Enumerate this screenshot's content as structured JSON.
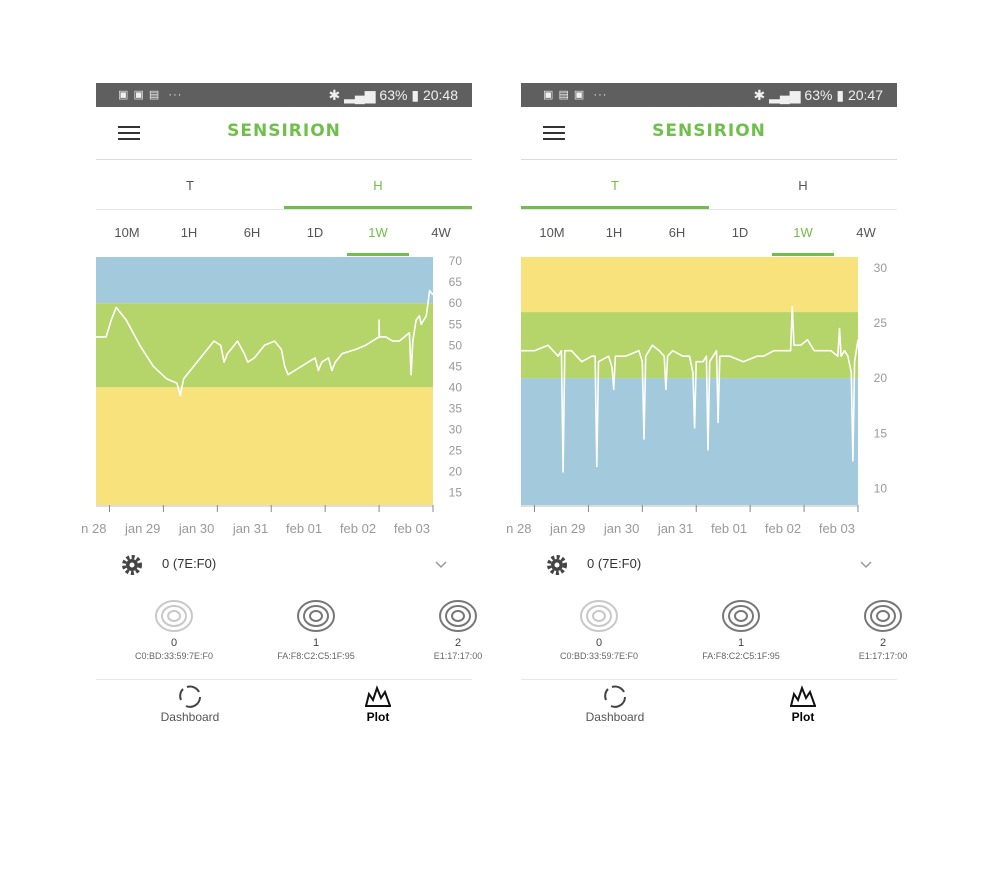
{
  "brand": "SENSIRION",
  "tabs": [
    "T",
    "H"
  ],
  "ranges": [
    "10M",
    "1H",
    "6H",
    "1D",
    "1W",
    "4W"
  ],
  "colors": {
    "blue": "#a3c9dd",
    "green": "#b5d56a",
    "yellow": "#f7e27c",
    "accent": "#6fbf4a",
    "line": "#ffffff"
  },
  "sensor_selector": {
    "label": "0 (7E:F0)"
  },
  "sensors": [
    {
      "num": "0",
      "addr": "C0:BD:33:59:7E:F0"
    },
    {
      "num": "1",
      "addr": "FA:F8:C2:C5:1F:95"
    },
    {
      "num": "2",
      "addr": "E1:17:17:00"
    }
  ],
  "nav": {
    "dashboard": "Dashboard",
    "plot": "Plot"
  },
  "screens": [
    {
      "status": {
        "battery": "63%",
        "time": "20:48"
      },
      "active_tab": 1,
      "active_range": 4,
      "chart_data": {
        "type": "line",
        "ylim": [
          12,
          71
        ],
        "yticks": [
          70,
          65,
          60,
          55,
          50,
          45,
          40,
          35,
          30,
          25,
          20,
          15
        ],
        "x_tick_labels": [
          "n 28",
          "jan 29",
          "jan 30",
          "jan 31",
          "feb 01",
          "feb 02",
          "feb 03"
        ],
        "x_tick_pos": [
          0.04,
          0.2,
          0.36,
          0.52,
          0.68,
          0.84,
          1.0
        ],
        "bands": [
          {
            "from": 60,
            "to": 72,
            "color": "blue"
          },
          {
            "from": 40,
            "to": 60,
            "color": "green"
          },
          {
            "from": 12,
            "to": 40,
            "color": "yellow"
          }
        ],
        "series": [
          {
            "x": [
              0,
              0.03,
              0.045,
              0.06,
              0.09,
              0.13,
              0.17,
              0.21,
              0.24,
              0.25,
              0.255,
              0.26,
              0.29,
              0.33,
              0.35,
              0.37,
              0.38,
              0.39,
              0.42,
              0.44,
              0.45,
              0.47,
              0.5,
              0.53,
              0.55,
              0.56,
              0.57,
              0.59,
              0.63,
              0.65,
              0.66,
              0.67,
              0.69,
              0.7,
              0.71,
              0.73,
              0.77,
              0.8,
              0.82,
              0.84,
              0.84,
              0.841,
              0.86,
              0.88,
              0.9,
              0.93,
              0.935,
              0.94,
              0.95,
              0.96,
              0.965,
              0.98,
              0.99,
              1.0
            ],
            "y": [
              52,
              52,
              56,
              59,
              56,
              50,
              45,
              42,
              41,
              38,
              40,
              42,
              45,
              49,
              51,
              50,
              46,
              48,
              51,
              48,
              46,
              47,
              50,
              51,
              49,
              45,
              43,
              44,
              46,
              47,
              44,
              46,
              47,
              44,
              46,
              48,
              49,
              50,
              51,
              52,
              56,
              52,
              52,
              51,
              51,
              53,
              43,
              51,
              56,
              57,
              55,
              57,
              63,
              62
            ]
          }
        ]
      }
    },
    {
      "status": {
        "battery": "63%",
        "time": "20:47"
      },
      "active_tab": 0,
      "active_range": 4,
      "chart_data": {
        "type": "line",
        "ylim": [
          8.5,
          31
        ],
        "yticks": [
          30,
          25,
          20,
          15,
          10
        ],
        "x_tick_labels": [
          "n 28",
          "jan 29",
          "jan 30",
          "jan 31",
          "feb 01",
          "feb 02",
          "feb 03"
        ],
        "x_tick_pos": [
          0.04,
          0.2,
          0.36,
          0.52,
          0.68,
          0.84,
          1.0
        ],
        "bands": [
          {
            "from": 26,
            "to": 32,
            "color": "yellow"
          },
          {
            "from": 20,
            "to": 26,
            "color": "green"
          },
          {
            "from": 8,
            "to": 20,
            "color": "blue"
          }
        ],
        "series": [
          {
            "x": [
              0,
              0.04,
              0.08,
              0.11,
              0.12,
              0.125,
              0.13,
              0.15,
              0.18,
              0.21,
              0.22,
              0.225,
              0.23,
              0.26,
              0.27,
              0.275,
              0.28,
              0.31,
              0.35,
              0.36,
              0.365,
              0.37,
              0.39,
              0.41,
              0.425,
              0.43,
              0.435,
              0.45,
              0.48,
              0.5,
              0.51,
              0.515,
              0.52,
              0.54,
              0.55,
              0.555,
              0.56,
              0.58,
              0.585,
              0.59,
              0.62,
              0.66,
              0.7,
              0.72,
              0.75,
              0.78,
              0.8,
              0.805,
              0.81,
              0.83,
              0.85,
              0.87,
              0.9,
              0.92,
              0.94,
              0.945,
              0.95,
              0.96,
              0.97,
              0.98,
              0.985,
              0.99,
              1.0
            ],
            "y": [
              22.5,
              22.5,
              23,
              22,
              22.5,
              11.5,
              22.5,
              22.5,
              21.5,
              22,
              22,
              12,
              21.5,
              22,
              21,
              19,
              22,
              22,
              22.5,
              21.5,
              14.5,
              22,
              23,
              22.5,
              22,
              19,
              22,
              22.5,
              22,
              22,
              20.5,
              15.5,
              21.5,
              21.5,
              22,
              13.5,
              21.5,
              22.5,
              16,
              22,
              22,
              21.5,
              22,
              22,
              22.5,
              22.5,
              22.5,
              26.5,
              23,
              23,
              23.5,
              22.5,
              22.5,
              22.5,
              22,
              24.5,
              22,
              22.5,
              22,
              20.5,
              12.5,
              21.5,
              23.5
            ]
          }
        ]
      }
    }
  ]
}
